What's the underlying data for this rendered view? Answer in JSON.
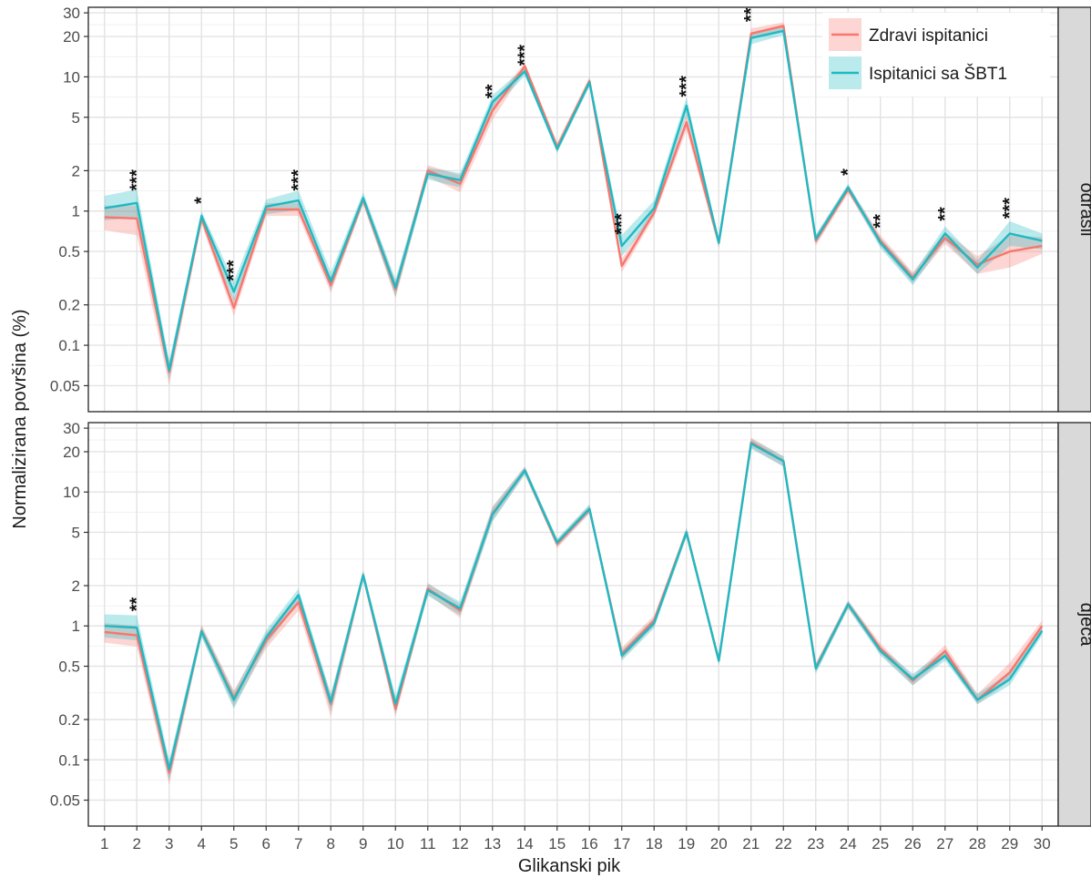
{
  "chart_data": {
    "type": "line",
    "xlabel": "Glikanski pik",
    "ylabel": "Normalizirana površina (%)",
    "x": [
      1,
      2,
      3,
      4,
      5,
      6,
      7,
      8,
      9,
      10,
      11,
      12,
      13,
      14,
      15,
      16,
      17,
      18,
      19,
      20,
      21,
      22,
      23,
      24,
      25,
      26,
      27,
      28,
      29,
      30
    ],
    "yscale": "log",
    "y_ticks": [
      0.05,
      0.1,
      0.2,
      0.5,
      1,
      2,
      5,
      10,
      20,
      30
    ],
    "y_tick_labels": [
      "0.05",
      "0.1",
      "0.2",
      "0.5",
      "1",
      "2",
      "5",
      "10",
      "20",
      "30"
    ],
    "ylim": [
      0.032,
      33
    ],
    "grid": true,
    "legend": {
      "placement": "top-right",
      "entries": [
        "Zdravi ispitanici",
        "Ispitanici sa ŠBT1"
      ]
    },
    "colors": {
      "Zdravi ispitanici": "#F8766D",
      "Ispitanici sa ŠBT1": "#1FB9C2"
    },
    "panels": [
      {
        "label": "odrasli",
        "series": [
          {
            "name": "Zdravi ispitanici",
            "values": [
              0.9,
              0.88,
              0.063,
              0.88,
              0.19,
              1.03,
              1.03,
              0.28,
              1.22,
              0.26,
              2.0,
              1.6,
              5.6,
              12.0,
              3.0,
              9.3,
              0.39,
              0.98,
              4.6,
              0.58,
              21.0,
              24.0,
              0.6,
              1.45,
              0.6,
              0.32,
              0.63,
              0.4,
              0.5,
              0.55
            ],
            "lower": [
              0.72,
              0.66,
              0.05,
              0.8,
              0.165,
              0.92,
              0.92,
              0.245,
              1.12,
              0.225,
              1.8,
              1.38,
              4.8,
              11.2,
              2.75,
              8.6,
              0.35,
              0.9,
              4.0,
              0.53,
              19.0,
              22.5,
              0.55,
              1.35,
              0.55,
              0.29,
              0.57,
              0.34,
              0.38,
              0.48
            ],
            "upper": [
              1.1,
              1.1,
              0.075,
              0.96,
              0.22,
              1.15,
              1.15,
              0.32,
              1.33,
              0.3,
              2.2,
              1.85,
              6.4,
              12.8,
              3.25,
              10.0,
              0.44,
              1.06,
              5.3,
              0.63,
              23.0,
              25.5,
              0.66,
              1.56,
              0.66,
              0.35,
              0.7,
              0.46,
              0.66,
              0.64
            ]
          },
          {
            "name": "Ispitanici sa ŠBT1",
            "values": [
              1.05,
              1.15,
              0.065,
              0.92,
              0.25,
              1.08,
              1.2,
              0.3,
              1.25,
              0.27,
              1.9,
              1.7,
              6.5,
              11.0,
              2.9,
              9.1,
              0.55,
              1.05,
              6.1,
              0.58,
              19.5,
              22.0,
              0.62,
              1.5,
              0.58,
              0.31,
              0.68,
              0.38,
              0.68,
              0.6
            ],
            "lower": [
              0.85,
              0.9,
              0.055,
              0.84,
              0.21,
              0.95,
              1.02,
              0.26,
              1.13,
              0.23,
              1.72,
              1.5,
              5.7,
              10.2,
              2.7,
              8.5,
              0.46,
              0.92,
              5.2,
              0.54,
              17.5,
              20.5,
              0.57,
              1.4,
              0.53,
              0.28,
              0.6,
              0.34,
              0.55,
              0.52
            ],
            "upper": [
              1.3,
              1.45,
              0.077,
              1.0,
              0.3,
              1.22,
              1.42,
              0.35,
              1.38,
              0.31,
              2.1,
              1.92,
              7.3,
              11.8,
              3.1,
              9.7,
              0.66,
              1.2,
              7.0,
              0.62,
              21.5,
              23.5,
              0.67,
              1.6,
              0.63,
              0.34,
              0.77,
              0.43,
              0.84,
              0.68
            ]
          }
        ],
        "annotations": [
          {
            "x": 2,
            "text": "***",
            "y": 1.7
          },
          {
            "x": 4,
            "text": "*",
            "y": 1.2
          },
          {
            "x": 5,
            "text": "***",
            "y": 0.36
          },
          {
            "x": 7,
            "text": "***",
            "y": 1.7
          },
          {
            "x": 13,
            "text": "**",
            "y": 7.8
          },
          {
            "x": 14,
            "text": "***",
            "y": 14.5
          },
          {
            "x": 17,
            "text": "***",
            "y": 0.8
          },
          {
            "x": 19,
            "text": "***",
            "y": 8.5
          },
          {
            "x": 21,
            "text": "**",
            "y": 29
          },
          {
            "x": 24,
            "text": "*",
            "y": 1.95
          },
          {
            "x": 25,
            "text": "**",
            "y": 0.84
          },
          {
            "x": 27,
            "text": "**",
            "y": 0.95
          },
          {
            "x": 29,
            "text": "***",
            "y": 1.05
          }
        ]
      },
      {
        "label": "djeca",
        "series": [
          {
            "name": "Zdravi ispitanici",
            "values": [
              0.9,
              0.85,
              0.08,
              0.92,
              0.29,
              0.78,
              1.5,
              0.26,
              2.4,
              0.24,
              1.9,
              1.3,
              6.9,
              14.5,
              4.1,
              7.4,
              0.62,
              1.1,
              5.0,
              0.55,
              23.5,
              17.0,
              0.49,
              1.45,
              0.68,
              0.39,
              0.65,
              0.28,
              0.45,
              1.0
            ],
            "lower": [
              0.75,
              0.7,
              0.065,
              0.83,
              0.25,
              0.68,
              1.3,
              0.21,
              2.2,
              0.21,
              1.72,
              1.15,
              6.1,
              13.5,
              3.8,
              6.9,
              0.56,
              1.0,
              4.6,
              0.51,
              21.5,
              15.5,
              0.45,
              1.35,
              0.62,
              0.36,
              0.58,
              0.26,
              0.39,
              0.9
            ],
            "upper": [
              1.05,
              1.0,
              0.095,
              1.02,
              0.33,
              0.88,
              1.75,
              0.31,
              2.6,
              0.27,
              2.1,
              1.45,
              7.8,
              15.5,
              4.4,
              8.0,
              0.69,
              1.2,
              5.4,
              0.6,
              25.5,
              18.5,
              0.53,
              1.55,
              0.74,
              0.42,
              0.72,
              0.31,
              0.53,
              1.1
            ]
          },
          {
            "name": "Ispitanici sa ŠBT1",
            "values": [
              1.0,
              0.97,
              0.085,
              0.91,
              0.28,
              0.82,
              1.7,
              0.27,
              2.4,
              0.26,
              1.85,
              1.35,
              6.8,
              14.5,
              4.2,
              7.5,
              0.6,
              1.05,
              5.0,
              0.55,
              23.0,
              17.0,
              0.48,
              1.45,
              0.65,
              0.4,
              0.6,
              0.28,
              0.4,
              0.92
            ],
            "lower": [
              0.82,
              0.78,
              0.07,
              0.83,
              0.24,
              0.72,
              1.5,
              0.23,
              2.2,
              0.22,
              1.68,
              1.2,
              6.0,
              13.5,
              3.9,
              7.0,
              0.55,
              0.96,
              4.6,
              0.51,
              21.0,
              15.5,
              0.44,
              1.35,
              0.6,
              0.36,
              0.55,
              0.26,
              0.36,
              0.85
            ],
            "upper": [
              1.22,
              1.2,
              0.1,
              1.0,
              0.32,
              0.93,
              1.9,
              0.31,
              2.6,
              0.3,
              2.05,
              1.52,
              7.7,
              15.5,
              4.5,
              8.1,
              0.66,
              1.15,
              5.4,
              0.59,
              25.0,
              18.5,
              0.52,
              1.55,
              0.7,
              0.44,
              0.66,
              0.31,
              0.45,
              1.0
            ]
          }
        ],
        "annotations": [
          {
            "x": 2,
            "text": "**",
            "y": 1.45
          }
        ]
      }
    ]
  }
}
